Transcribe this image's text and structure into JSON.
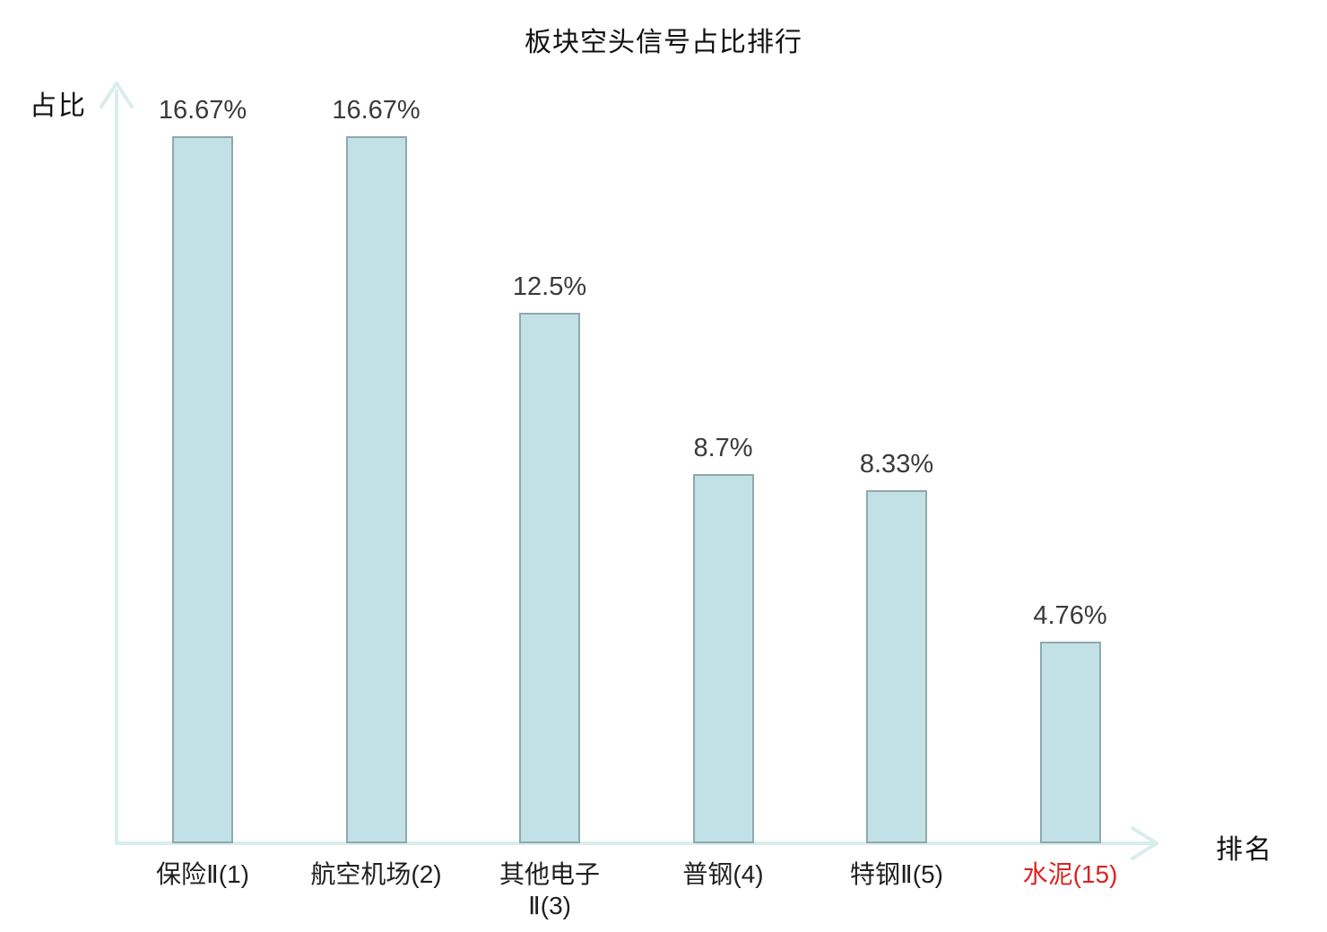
{
  "title": "板块空头信号占比排行",
  "chart_data": {
    "type": "bar",
    "title": "板块空头信号占比排行",
    "xlabel": "排名",
    "ylabel": "占比",
    "categories": [
      "保险Ⅱ(1)",
      "航空机场(2)",
      "其他电子\nⅡ(3)",
      "普钢(4)",
      "特钢Ⅱ(5)",
      "水泥(15)"
    ],
    "values": [
      16.67,
      16.67,
      12.5,
      8.7,
      8.33,
      4.76
    ],
    "value_labels": [
      "16.67%",
      "16.67%",
      "12.5%",
      "8.7%",
      "8.33%",
      "4.76%"
    ],
    "category_colors": [
      "#1f1f1f",
      "#1f1f1f",
      "#1f1f1f",
      "#1f1f1f",
      "#1f1f1f",
      "#dd2222"
    ],
    "ylim": [
      0,
      17.8
    ],
    "grid": false,
    "legend": null,
    "colors": {
      "bar_fill": "#c2e1e6",
      "bar_border": "#8fa9ad",
      "axis": "#d9edeb",
      "value_label": "#3a3a3a",
      "highlight_category": "#dd2222"
    }
  }
}
